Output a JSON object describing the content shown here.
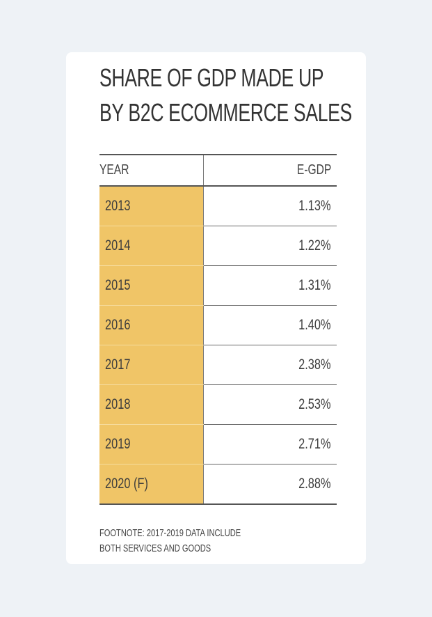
{
  "title": {
    "line1": "SHARE OF GDP MADE UP",
    "line2": "BY B2C ECOMMERCE SALES"
  },
  "table": {
    "columns": [
      "YEAR",
      "E-GDP"
    ],
    "rows": [
      {
        "year": "2013",
        "value": "1.13%"
      },
      {
        "year": "2014",
        "value": "1.22%"
      },
      {
        "year": "2015",
        "value": "1.31%"
      },
      {
        "year": "2016",
        "value": "1.40%"
      },
      {
        "year": "2017",
        "value": "2.38%"
      },
      {
        "year": "2018",
        "value": "2.53%"
      },
      {
        "year": "2019",
        "value": "2.71%"
      },
      {
        "year": "2020 (F)",
        "value": "2.88%"
      }
    ]
  },
  "footnote": {
    "line1": "FOOTNOTE: 2017-2019 DATA INCLUDE",
    "line2": "BOTH SERVICES AND GOODS"
  },
  "colors": {
    "year_highlight": "#f0c567",
    "background": "#eef2f6",
    "card": "#ffffff"
  },
  "chart_data": {
    "type": "table",
    "title": "SHARE OF GDP MADE UP BY B2C ECOMMERCE SALES",
    "columns": [
      "YEAR",
      "E-GDP"
    ],
    "categories": [
      "2013",
      "2014",
      "2015",
      "2016",
      "2017",
      "2018",
      "2019",
      "2020 (F)"
    ],
    "series": [
      {
        "name": "E-GDP",
        "values": [
          1.13,
          1.22,
          1.31,
          1.4,
          2.38,
          2.53,
          2.71,
          2.88
        ]
      }
    ]
  }
}
